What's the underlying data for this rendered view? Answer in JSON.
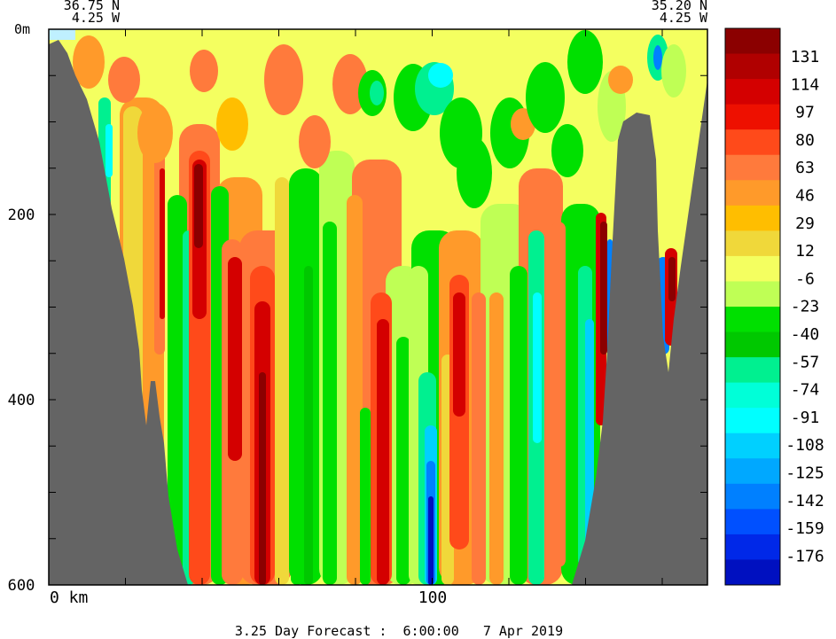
{
  "chart_data": {
    "type": "heatmap",
    "corner_left": {
      "lat": "36.75 N",
      "lon": "4.25 W"
    },
    "corner_right": {
      "lat": "35.20 N",
      "lon": "4.25 W"
    },
    "y_axis": {
      "top_label": "0m",
      "ticks": [
        "200",
        "400",
        "600"
      ],
      "ylim": [
        0,
        600
      ],
      "inverted": true
    },
    "x_axis": {
      "ticks": [
        "0 km",
        "100"
      ]
    },
    "caption": "3.25 Day Forecast :  6:00:00   7 Apr 2019",
    "colorbar": {
      "levels": [
        "131",
        "114",
        "97",
        "80",
        "63",
        "46",
        "29",
        "12",
        "-6",
        "-23",
        "-40",
        "-57",
        "-74",
        "-91",
        "-108",
        "-125",
        "-142",
        "-159",
        "-176"
      ],
      "colors": [
        "#8b0000",
        "#b00000",
        "#d40000",
        "#ee1000",
        "#ff4a1a",
        "#ff7a3c",
        "#ff9a2a",
        "#ffbe00",
        "#f0d83a",
        "#f4ff60",
        "#bfff55",
        "#00e000",
        "#00c800",
        "#00f090",
        "#00ffd8",
        "#00ffff",
        "#00d0ff",
        "#00a8ff",
        "#0080ff",
        "#0050ff",
        "#0028e8",
        "#0010c0"
      ]
    },
    "land_color": "#646464",
    "grid": false,
    "legend_position": "right"
  }
}
